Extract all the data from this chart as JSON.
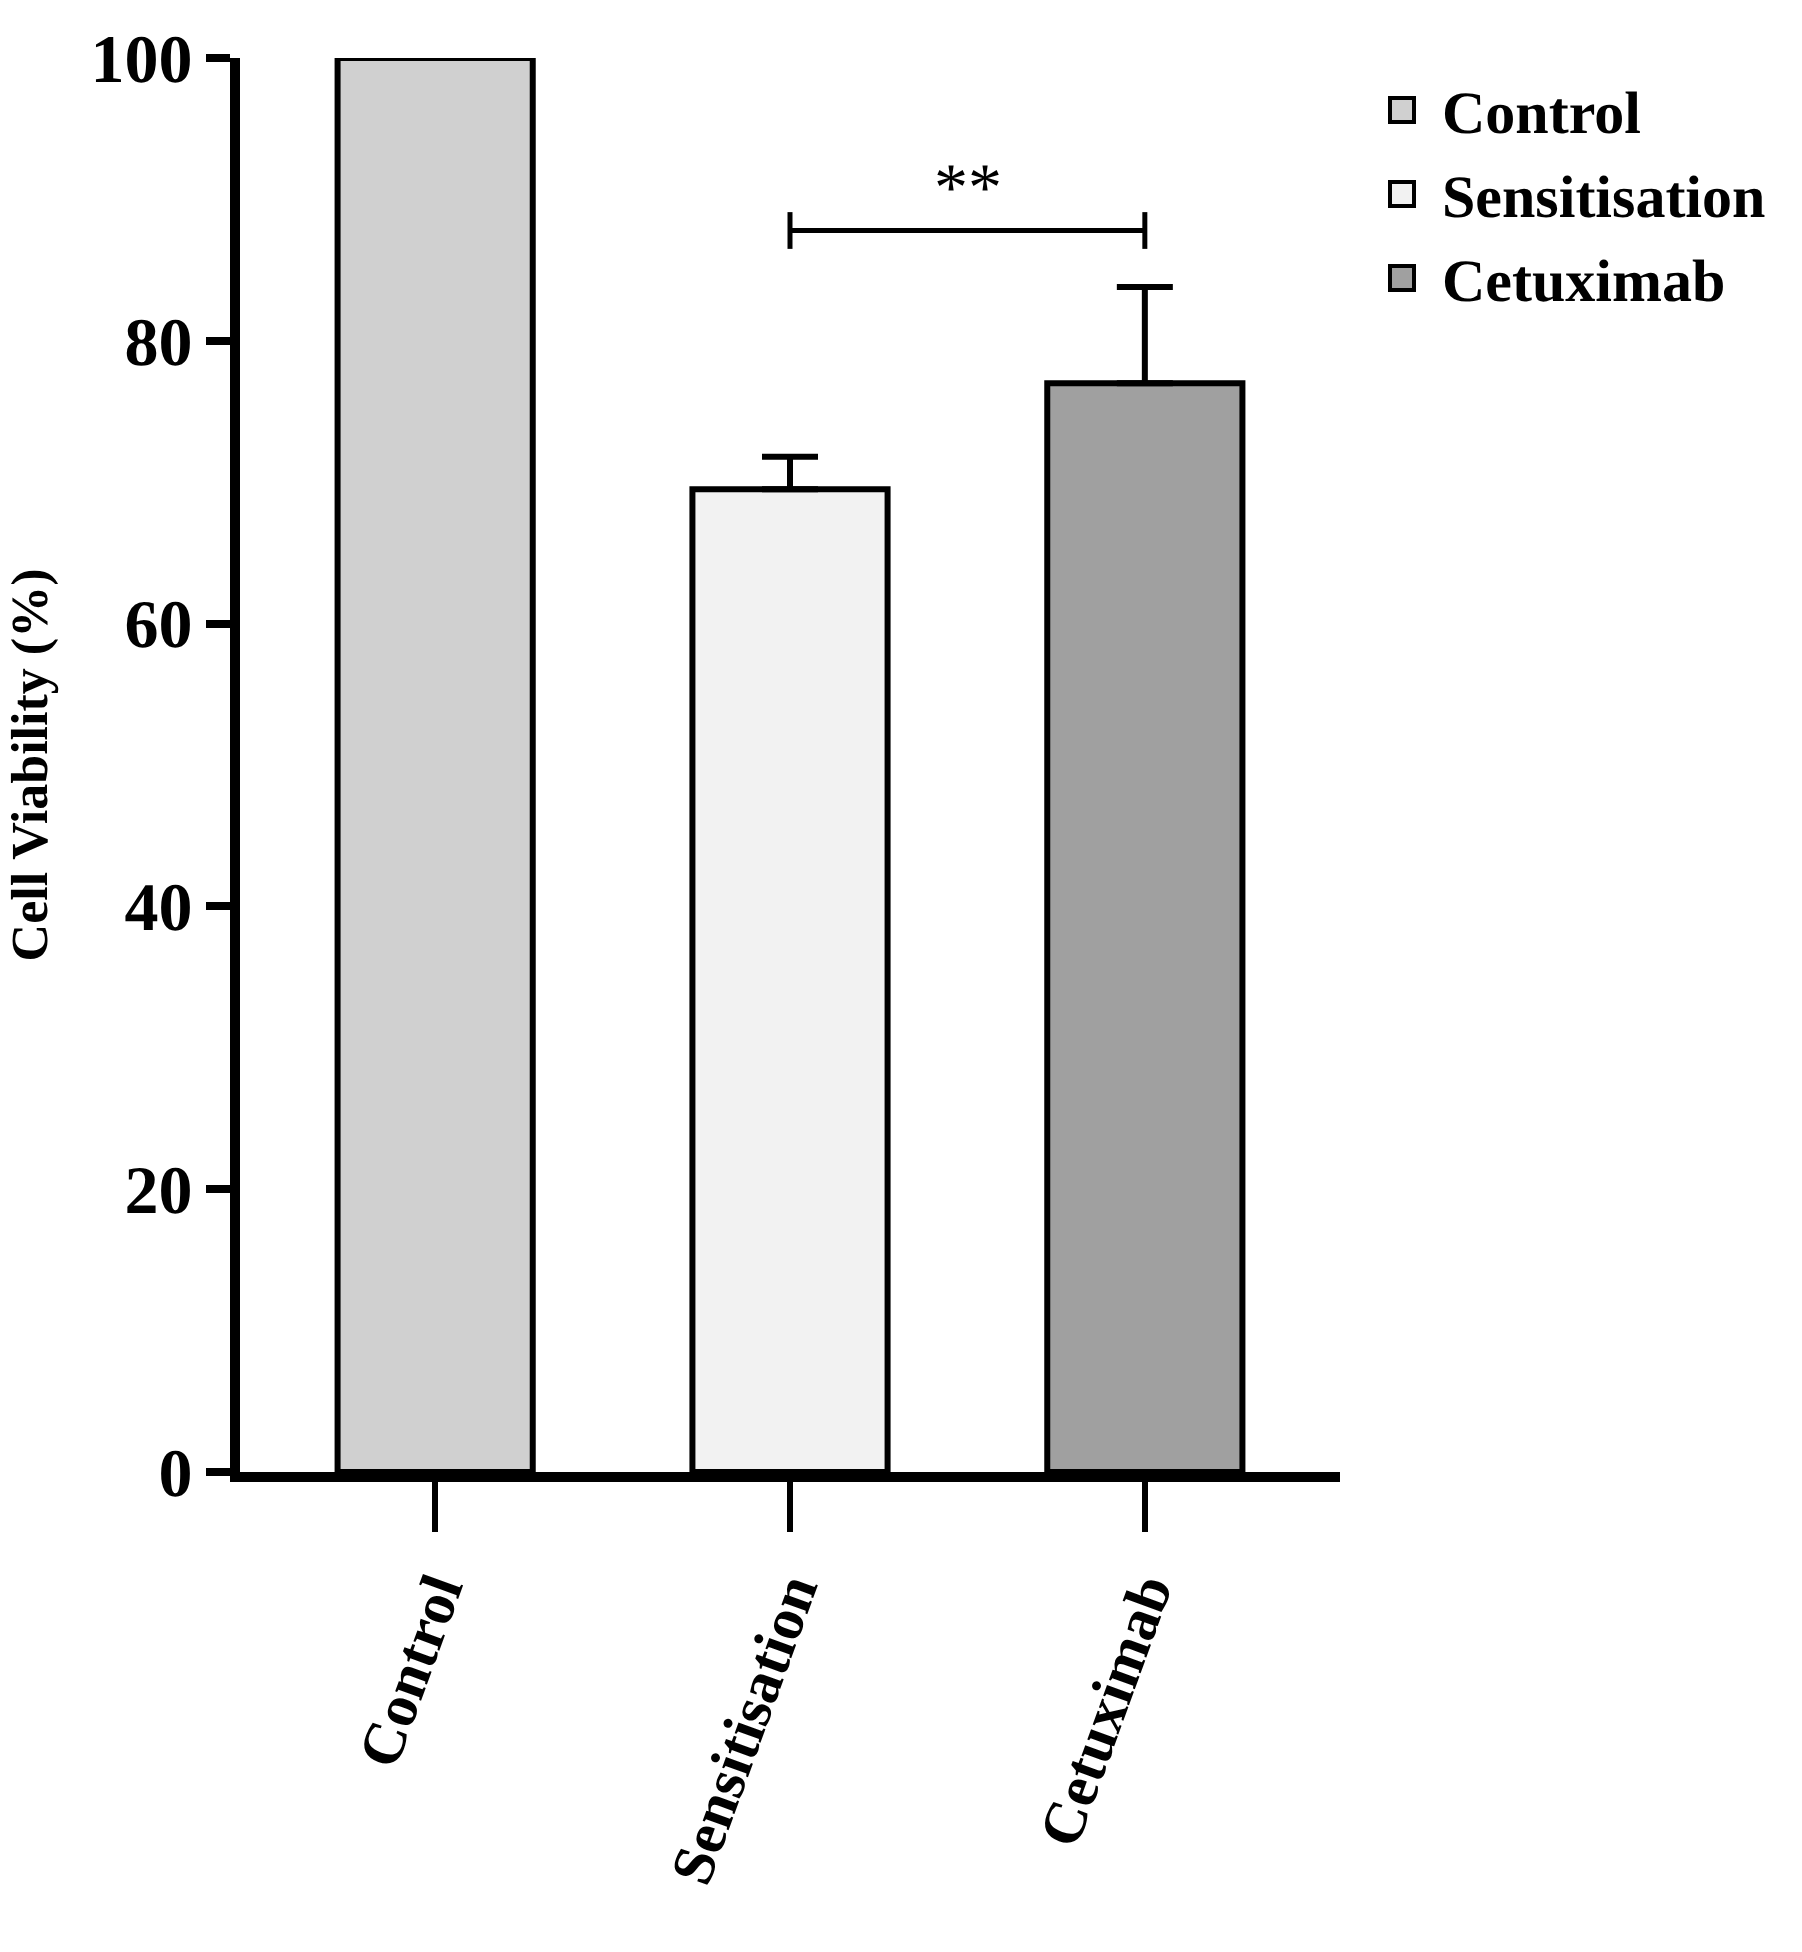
{
  "chart_data": {
    "type": "bar",
    "ylabel": "Cell Viability (%)",
    "categories": [
      "Control",
      "Sensitisation",
      "Cetuximab"
    ],
    "series": [
      {
        "name": "Control",
        "color": "#d0d0d0",
        "values": [
          100,
          null,
          null
        ],
        "errors": [
          null,
          null,
          null
        ]
      },
      {
        "name": "Sensitisation",
        "color": "#f2f2f2",
        "values": [
          null,
          69.5,
          null
        ],
        "errors": [
          null,
          [
            69.5,
            71.8
          ],
          null
        ]
      },
      {
        "name": "Cetuximab",
        "color": "#a0a0a0",
        "values": [
          null,
          null,
          77
        ],
        "errors": [
          null,
          null,
          [
            77,
            83.8
          ]
        ]
      }
    ],
    "ylim": [
      0,
      100
    ],
    "yticks": [
      0,
      20,
      40,
      60,
      80,
      100
    ],
    "legend": "top right",
    "annotations": [
      "**"
    ]
  }
}
